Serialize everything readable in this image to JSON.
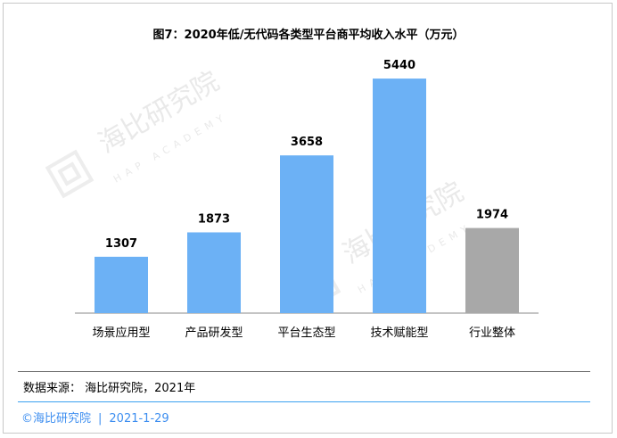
{
  "chart_data": {
    "type": "bar",
    "title": "图7：2020年低/无代码各类型平台商平均收入水平（万元）",
    "categories": [
      "场景应用型",
      "产品研发型",
      "平台生态型",
      "技术赋能型",
      "行业整体"
    ],
    "values": [
      1307,
      1873,
      3658,
      5440,
      1974
    ],
    "ylim": [
      0,
      6000
    ],
    "grid": false,
    "colors": {
      "bar": "#6cb1f5",
      "overall_bar": "#a8a8a8",
      "axis": "#8a8a8a"
    }
  },
  "source": "数据来源： 海比研究院，2021年",
  "footer": {
    "org": "©海比研究院",
    "divider": "|",
    "date": "2021-1-29"
  },
  "watermark": {
    "name": "海比研究院",
    "subtitle": "HAP ACADEMY"
  }
}
